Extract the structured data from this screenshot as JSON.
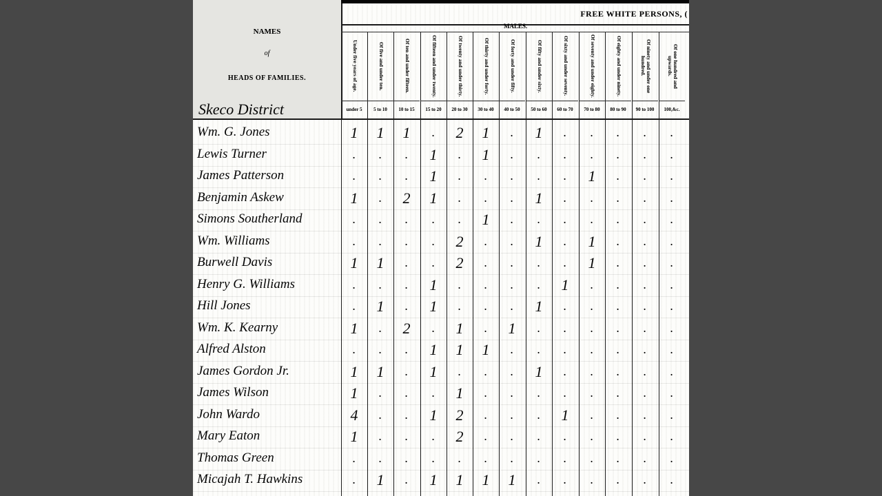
{
  "header": {
    "title": "FREE WHITE PERSONS, (",
    "subtitle": "MALES.",
    "names_heading": [
      "NAMES",
      "of",
      "HEADS OF FAMILIES."
    ],
    "district": "Skeco District"
  },
  "columns": [
    {
      "long": "Under five years of age.",
      "short": "under 5"
    },
    {
      "long": "Of five and under ten.",
      "short": "5 to 10"
    },
    {
      "long": "Of ten and under fifteen.",
      "short": "10 to 15"
    },
    {
      "long": "Of fifteen and under twenty.",
      "short": "15 to 20"
    },
    {
      "long": "Of twenty and under thirty.",
      "short": "20 to 30"
    },
    {
      "long": "Of thirty and under forty.",
      "short": "30 to 40"
    },
    {
      "long": "Of forty and under fifty.",
      "short": "40 to 50"
    },
    {
      "long": "Of fifty and under sixty.",
      "short": "50 to 60"
    },
    {
      "long": "Of sixty and under seventy.",
      "short": "60 to 70"
    },
    {
      "long": "Of seventy and under eighty.",
      "short": "70 to 80"
    },
    {
      "long": "Of eighty and under ninety.",
      "short": "80 to 90"
    },
    {
      "long": "Of ninety and under one hundred.",
      "short": "90 to 100"
    },
    {
      "long": "Of one hundred and upwards.",
      "short": "100,&c."
    }
  ],
  "rows": [
    {
      "name": "Wm. G. Jones",
      "values": [
        "1",
        "1",
        "1",
        ".",
        "2",
        "1",
        ".",
        "1",
        ".",
        ".",
        ".",
        ".",
        "."
      ]
    },
    {
      "name": "Lewis Turner",
      "values": [
        ".",
        ".",
        ".",
        "1",
        ".",
        "1",
        ".",
        ".",
        ".",
        ".",
        ".",
        ".",
        "."
      ]
    },
    {
      "name": "James Patterson",
      "values": [
        ".",
        ".",
        ".",
        "1",
        ".",
        ".",
        ".",
        ".",
        ".",
        "1",
        ".",
        ".",
        "."
      ]
    },
    {
      "name": "Benjamin Askew",
      "values": [
        "1",
        ".",
        "2",
        "1",
        ".",
        ".",
        ".",
        "1",
        ".",
        ".",
        ".",
        ".",
        "."
      ]
    },
    {
      "name": "Simons Southerland",
      "values": [
        ".",
        ".",
        ".",
        ".",
        ".",
        "1",
        ".",
        ".",
        ".",
        ".",
        ".",
        ".",
        "."
      ]
    },
    {
      "name": "Wm. Williams",
      "values": [
        ".",
        ".",
        ".",
        ".",
        "2",
        ".",
        ".",
        "1",
        ".",
        "1",
        ".",
        ".",
        "."
      ]
    },
    {
      "name": "Burwell Davis",
      "values": [
        "1",
        "1",
        ".",
        ".",
        "2",
        ".",
        ".",
        ".",
        ".",
        "1",
        ".",
        ".",
        "."
      ]
    },
    {
      "name": "Henry G. Williams",
      "values": [
        ".",
        ".",
        ".",
        "1",
        ".",
        ".",
        ".",
        ".",
        "1",
        ".",
        ".",
        ".",
        "."
      ]
    },
    {
      "name": "Hill Jones",
      "values": [
        ".",
        "1",
        ".",
        "1",
        ".",
        ".",
        ".",
        "1",
        ".",
        ".",
        ".",
        ".",
        "."
      ]
    },
    {
      "name": "Wm. K. Kearny",
      "values": [
        "1",
        ".",
        "2",
        ".",
        "1",
        ".",
        "1",
        ".",
        ".",
        ".",
        ".",
        ".",
        "."
      ]
    },
    {
      "name": "Alfred Alston",
      "values": [
        ".",
        ".",
        ".",
        "1",
        "1",
        "1",
        ".",
        ".",
        ".",
        ".",
        ".",
        ".",
        "."
      ]
    },
    {
      "name": "James Gordon Jr.",
      "values": [
        "1",
        "1",
        ".",
        "1",
        ".",
        ".",
        ".",
        "1",
        ".",
        ".",
        ".",
        ".",
        "."
      ]
    },
    {
      "name": "James Wilson",
      "values": [
        "1",
        ".",
        ".",
        ".",
        "1",
        ".",
        ".",
        ".",
        ".",
        ".",
        ".",
        ".",
        "."
      ]
    },
    {
      "name": "John Wardo",
      "values": [
        "4",
        ".",
        ".",
        "1",
        "2",
        ".",
        ".",
        ".",
        "1",
        ".",
        ".",
        ".",
        "."
      ]
    },
    {
      "name": "Mary Eaton",
      "values": [
        "1",
        ".",
        ".",
        ".",
        "2",
        ".",
        ".",
        ".",
        ".",
        ".",
        ".",
        ".",
        "."
      ]
    },
    {
      "name": "Thomas Green",
      "values": [
        ".",
        ".",
        ".",
        ".",
        ".",
        ".",
        ".",
        ".",
        ".",
        ".",
        ".",
        ".",
        "."
      ]
    },
    {
      "name": "Micajah T. Hawkins",
      "values": [
        ".",
        "1",
        ".",
        "1",
        "1",
        "1",
        "1",
        ".",
        ".",
        ".",
        ".",
        ".",
        "."
      ]
    }
  ]
}
